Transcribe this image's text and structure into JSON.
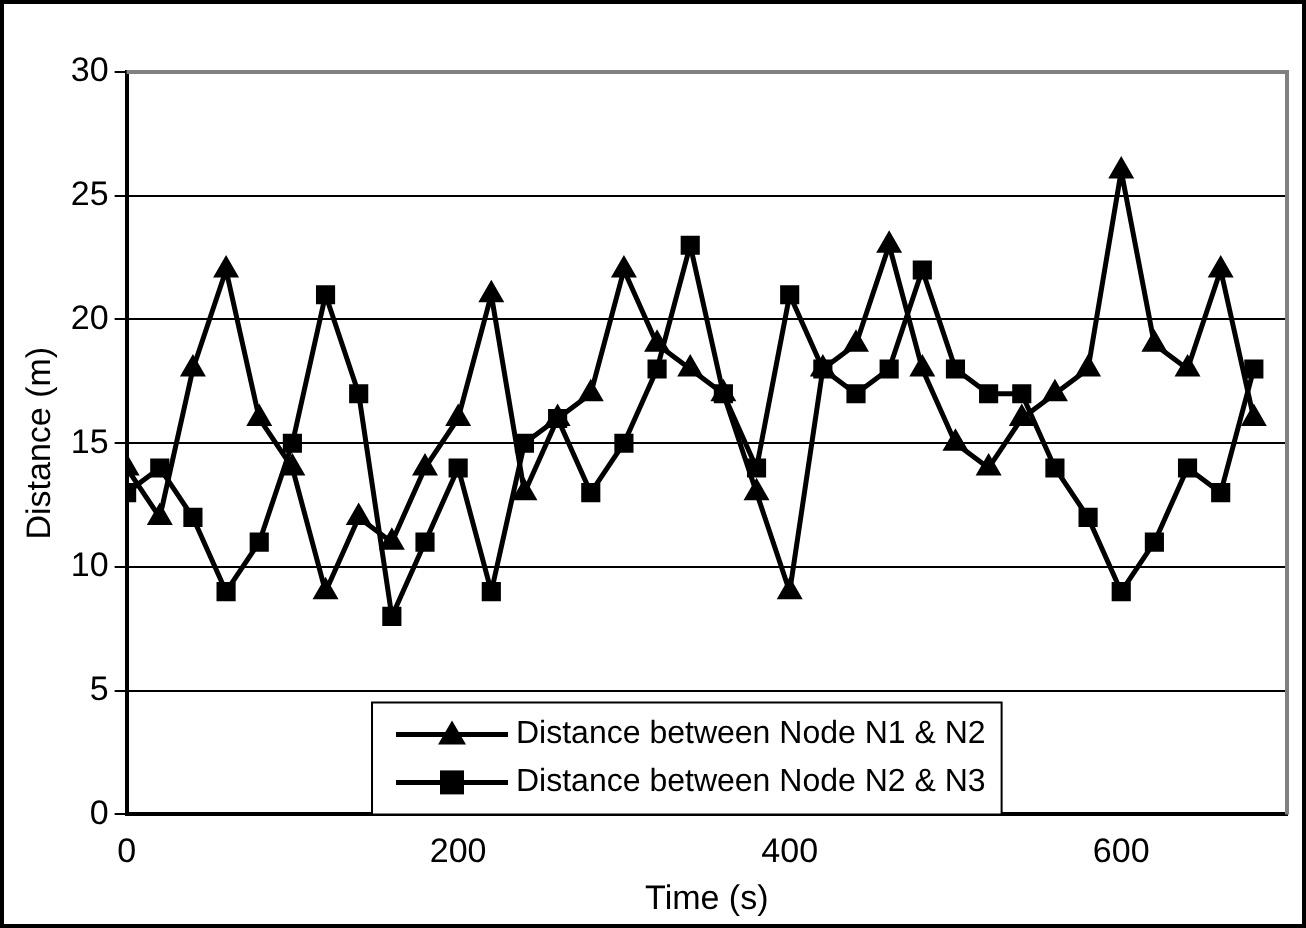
{
  "chart_data": {
    "type": "line",
    "xlabel": "Time (s)",
    "ylabel": "Distance (m)",
    "x": [
      0,
      20,
      40,
      60,
      80,
      100,
      120,
      140,
      160,
      180,
      200,
      220,
      240,
      260,
      280,
      300,
      320,
      340,
      360,
      380,
      400,
      420,
      440,
      460,
      480,
      500,
      520,
      540,
      560,
      580,
      600,
      620,
      640,
      660,
      680
    ],
    "series": [
      {
        "name": "Distance between Node N1 & N2",
        "color": "#000000",
        "marker": "triangle",
        "values": [
          14,
          12,
          18,
          22,
          16,
          14,
          9,
          12,
          11,
          14,
          16,
          21,
          13,
          16,
          17,
          22,
          19,
          18,
          17,
          13,
          9,
          18,
          19,
          23,
          18,
          15,
          14,
          16,
          17,
          18,
          26,
          19,
          18,
          22,
          16
        ]
      },
      {
        "name": "Distance between Node N2 & N3",
        "color": "#000000",
        "marker": "square",
        "values": [
          13,
          14,
          12,
          9,
          11,
          15,
          21,
          17,
          8,
          11,
          14,
          9,
          15,
          16,
          13,
          15,
          18,
          23,
          17,
          14,
          21,
          18,
          17,
          18,
          22,
          18,
          17,
          17,
          14,
          12,
          9,
          11,
          14,
          13,
          18
        ]
      }
    ],
    "xlim": [
      0,
      700
    ],
    "xticks": [
      0,
      200,
      400,
      600
    ],
    "ylim": [
      0,
      30
    ],
    "yticks": [
      0,
      5,
      10,
      15,
      20,
      25,
      30
    ],
    "grid": "y",
    "legend": "bottom",
    "line_style": "solid"
  }
}
